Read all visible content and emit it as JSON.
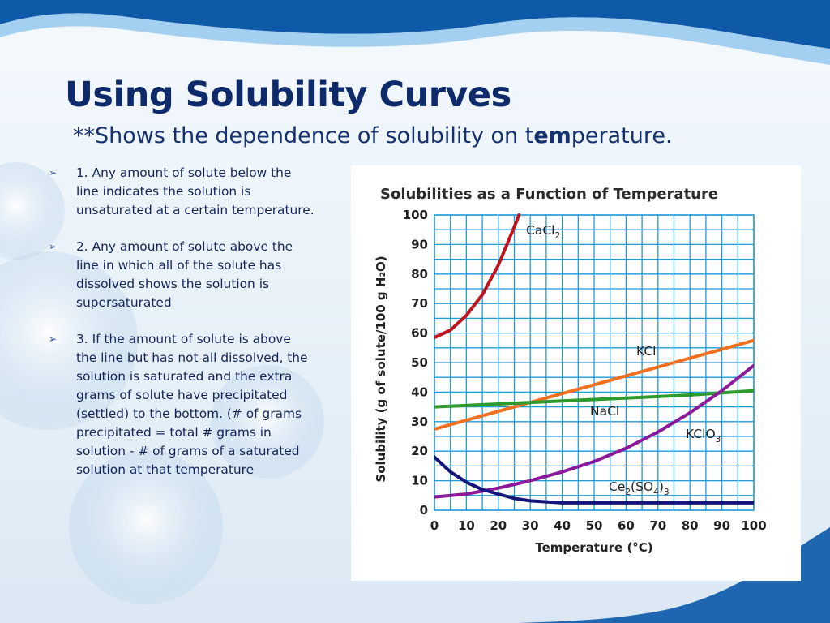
{
  "slide": {
    "title": "Using Solubility Curves",
    "subtitle_prefix": "**Shows the dependence of solubility on t",
    "subtitle_bold": "em",
    "subtitle_suffix": "perature.",
    "bullet_marker": "➢",
    "bullets": [
      "1.  Any amount of solute below the line indicates the solution is unsaturated at a certain temperature.",
      "2.  Any amount of solute above the line in which all of the solute has dissolved shows the solution is supersaturated",
      "3.  If the amount of solute is above the line but has not all dissolved, the solution is saturated and the extra grams of solute have precipitated (settled) to the bottom. (# of grams precipitated = total # grams in solution - # of grams of a saturated solution at that temperature"
    ]
  },
  "chart_data": {
    "type": "line",
    "title": "Solubilities as a Function of Temperature",
    "xlabel": "Temperature (°C)",
    "ylabel": "Solubility (g of solute/100 g H₂O)",
    "xlim": [
      0,
      100
    ],
    "ylim": [
      0,
      100
    ],
    "xticks": [
      0,
      10,
      20,
      30,
      40,
      50,
      60,
      70,
      80,
      90,
      100
    ],
    "yticks": [
      0,
      10,
      20,
      30,
      40,
      50,
      60,
      70,
      80,
      90,
      100
    ],
    "grid": true,
    "series": [
      {
        "name": "CaCl₂",
        "base": "CaCl",
        "sub": "2",
        "color": "#c0141c",
        "x": [
          0,
          5,
          10,
          15,
          20,
          25,
          26.5
        ],
        "y": [
          58.5,
          61,
          66,
          73,
          83,
          96,
          100
        ]
      },
      {
        "name": "KCl",
        "base": "KCl",
        "color": "#f07020",
        "x": [
          0,
          10,
          20,
          30,
          40,
          50,
          60,
          70,
          80,
          90,
          100
        ],
        "y": [
          27.5,
          30.5,
          33.5,
          36.5,
          39.5,
          42.5,
          45.5,
          48.5,
          51.5,
          54.5,
          57.5
        ]
      },
      {
        "name": "NaCl",
        "base": "NaCl",
        "color": "#2e9a2e",
        "x": [
          0,
          20,
          40,
          60,
          80,
          100
        ],
        "y": [
          35,
          36,
          37,
          38,
          39,
          40.5
        ]
      },
      {
        "name": "KClO₃",
        "base": "KClO",
        "sub": "3",
        "color": "#8b1a9a",
        "x": [
          0,
          10,
          20,
          30,
          40,
          50,
          60,
          70,
          80,
          90,
          100
        ],
        "y": [
          4.5,
          5.5,
          7.5,
          10,
          13,
          16.5,
          21,
          26.5,
          33,
          40.5,
          49
        ]
      },
      {
        "name": "Ce₂(SO₄)₃",
        "base": "Ce",
        "sub": "2",
        "mid": "(SO",
        "sub2": "4",
        "end": ")",
        "sub3": "3",
        "color": "#14147a",
        "x": [
          0,
          5,
          10,
          15,
          20,
          25,
          30,
          40,
          50,
          60,
          70,
          80,
          90,
          100
        ],
        "y": [
          18,
          13,
          9.5,
          7,
          5.5,
          4,
          3.2,
          2.5,
          2.5,
          2.5,
          2.5,
          2.5,
          2.5,
          2.5
        ]
      }
    ]
  }
}
